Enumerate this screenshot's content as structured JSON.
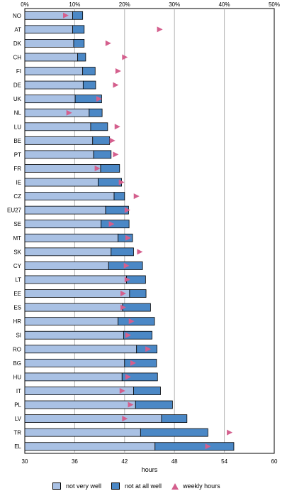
{
  "chart_data": {
    "type": "bar",
    "orientation": "horizontal",
    "stacked": true,
    "categories": [
      "NO",
      "AT",
      "DK",
      "CH",
      "FI",
      "DE",
      "UK",
      "NL",
      "LU",
      "BE",
      "PT",
      "FR",
      "IE",
      "CZ",
      "EU27",
      "SE",
      "MT",
      "SK",
      "CY",
      "LT",
      "EE",
      "ES",
      "HR",
      "SI",
      "RO",
      "BG",
      "HU",
      "IT",
      "PL",
      "LV",
      "TR",
      "EL"
    ],
    "series": [
      {
        "name": "not very well",
        "values": [
          9.6,
          9.6,
          9.8,
          10.6,
          11.6,
          11.7,
          10.1,
          12.9,
          13.2,
          13.6,
          13.8,
          15.2,
          14.7,
          17.9,
          16.2,
          15.3,
          18.7,
          17.3,
          16.8,
          20.4,
          21.0,
          19.6,
          18.7,
          19.8,
          22.4,
          20.0,
          19.5,
          21.8,
          22.2,
          27.4,
          23.2,
          26.1
        ],
        "color": "#a9c1e4"
      },
      {
        "name": "not at all well",
        "values": [
          2.0,
          2.3,
          2.1,
          1.6,
          2.5,
          2.5,
          5.3,
          2.6,
          3.4,
          3.4,
          3.5,
          3.8,
          4.7,
          2.1,
          4.6,
          5.6,
          2.9,
          4.5,
          6.8,
          3.8,
          3.3,
          5.6,
          7.3,
          5.7,
          4.1,
          6.4,
          7.1,
          5.4,
          7.4,
          5.1,
          13.5,
          15.8
        ],
        "color": "#4b88c6"
      }
    ],
    "weekly_hours": [
      34.9,
      46.2,
      40.0,
      42.0,
      41.2,
      40.9,
      38.9,
      35.3,
      41.1,
      40.5,
      40.9,
      38.7,
      41.6,
      43.4,
      42.3,
      40.4,
      42.4,
      43.8,
      42.2,
      42.3,
      41.8,
      41.8,
      42.8,
      42.4,
      44.8,
      43.0,
      42.4,
      41.7,
      42.7,
      42.0,
      54.6,
      52.0
    ],
    "x_axis_hours": {
      "ticks": [
        30,
        36,
        42,
        48,
        54,
        60
      ],
      "label": "hours",
      "lim": [
        30,
        60
      ]
    },
    "x_axis_percent": {
      "ticks": [
        "0%",
        "10%",
        "20%",
        "30%",
        "40%",
        "50%"
      ],
      "lim": [
        0,
        50
      ]
    },
    "grid": true,
    "legend": {
      "position": "bottom",
      "items": [
        {
          "label": "not very well",
          "marker": "swatch",
          "color": "#a9c1e4"
        },
        {
          "label": "not at all well",
          "marker": "swatch",
          "color": "#4b88c6"
        },
        {
          "label": "weekly hours",
          "marker": "triangle",
          "color": "#d45f8d"
        }
      ]
    }
  }
}
